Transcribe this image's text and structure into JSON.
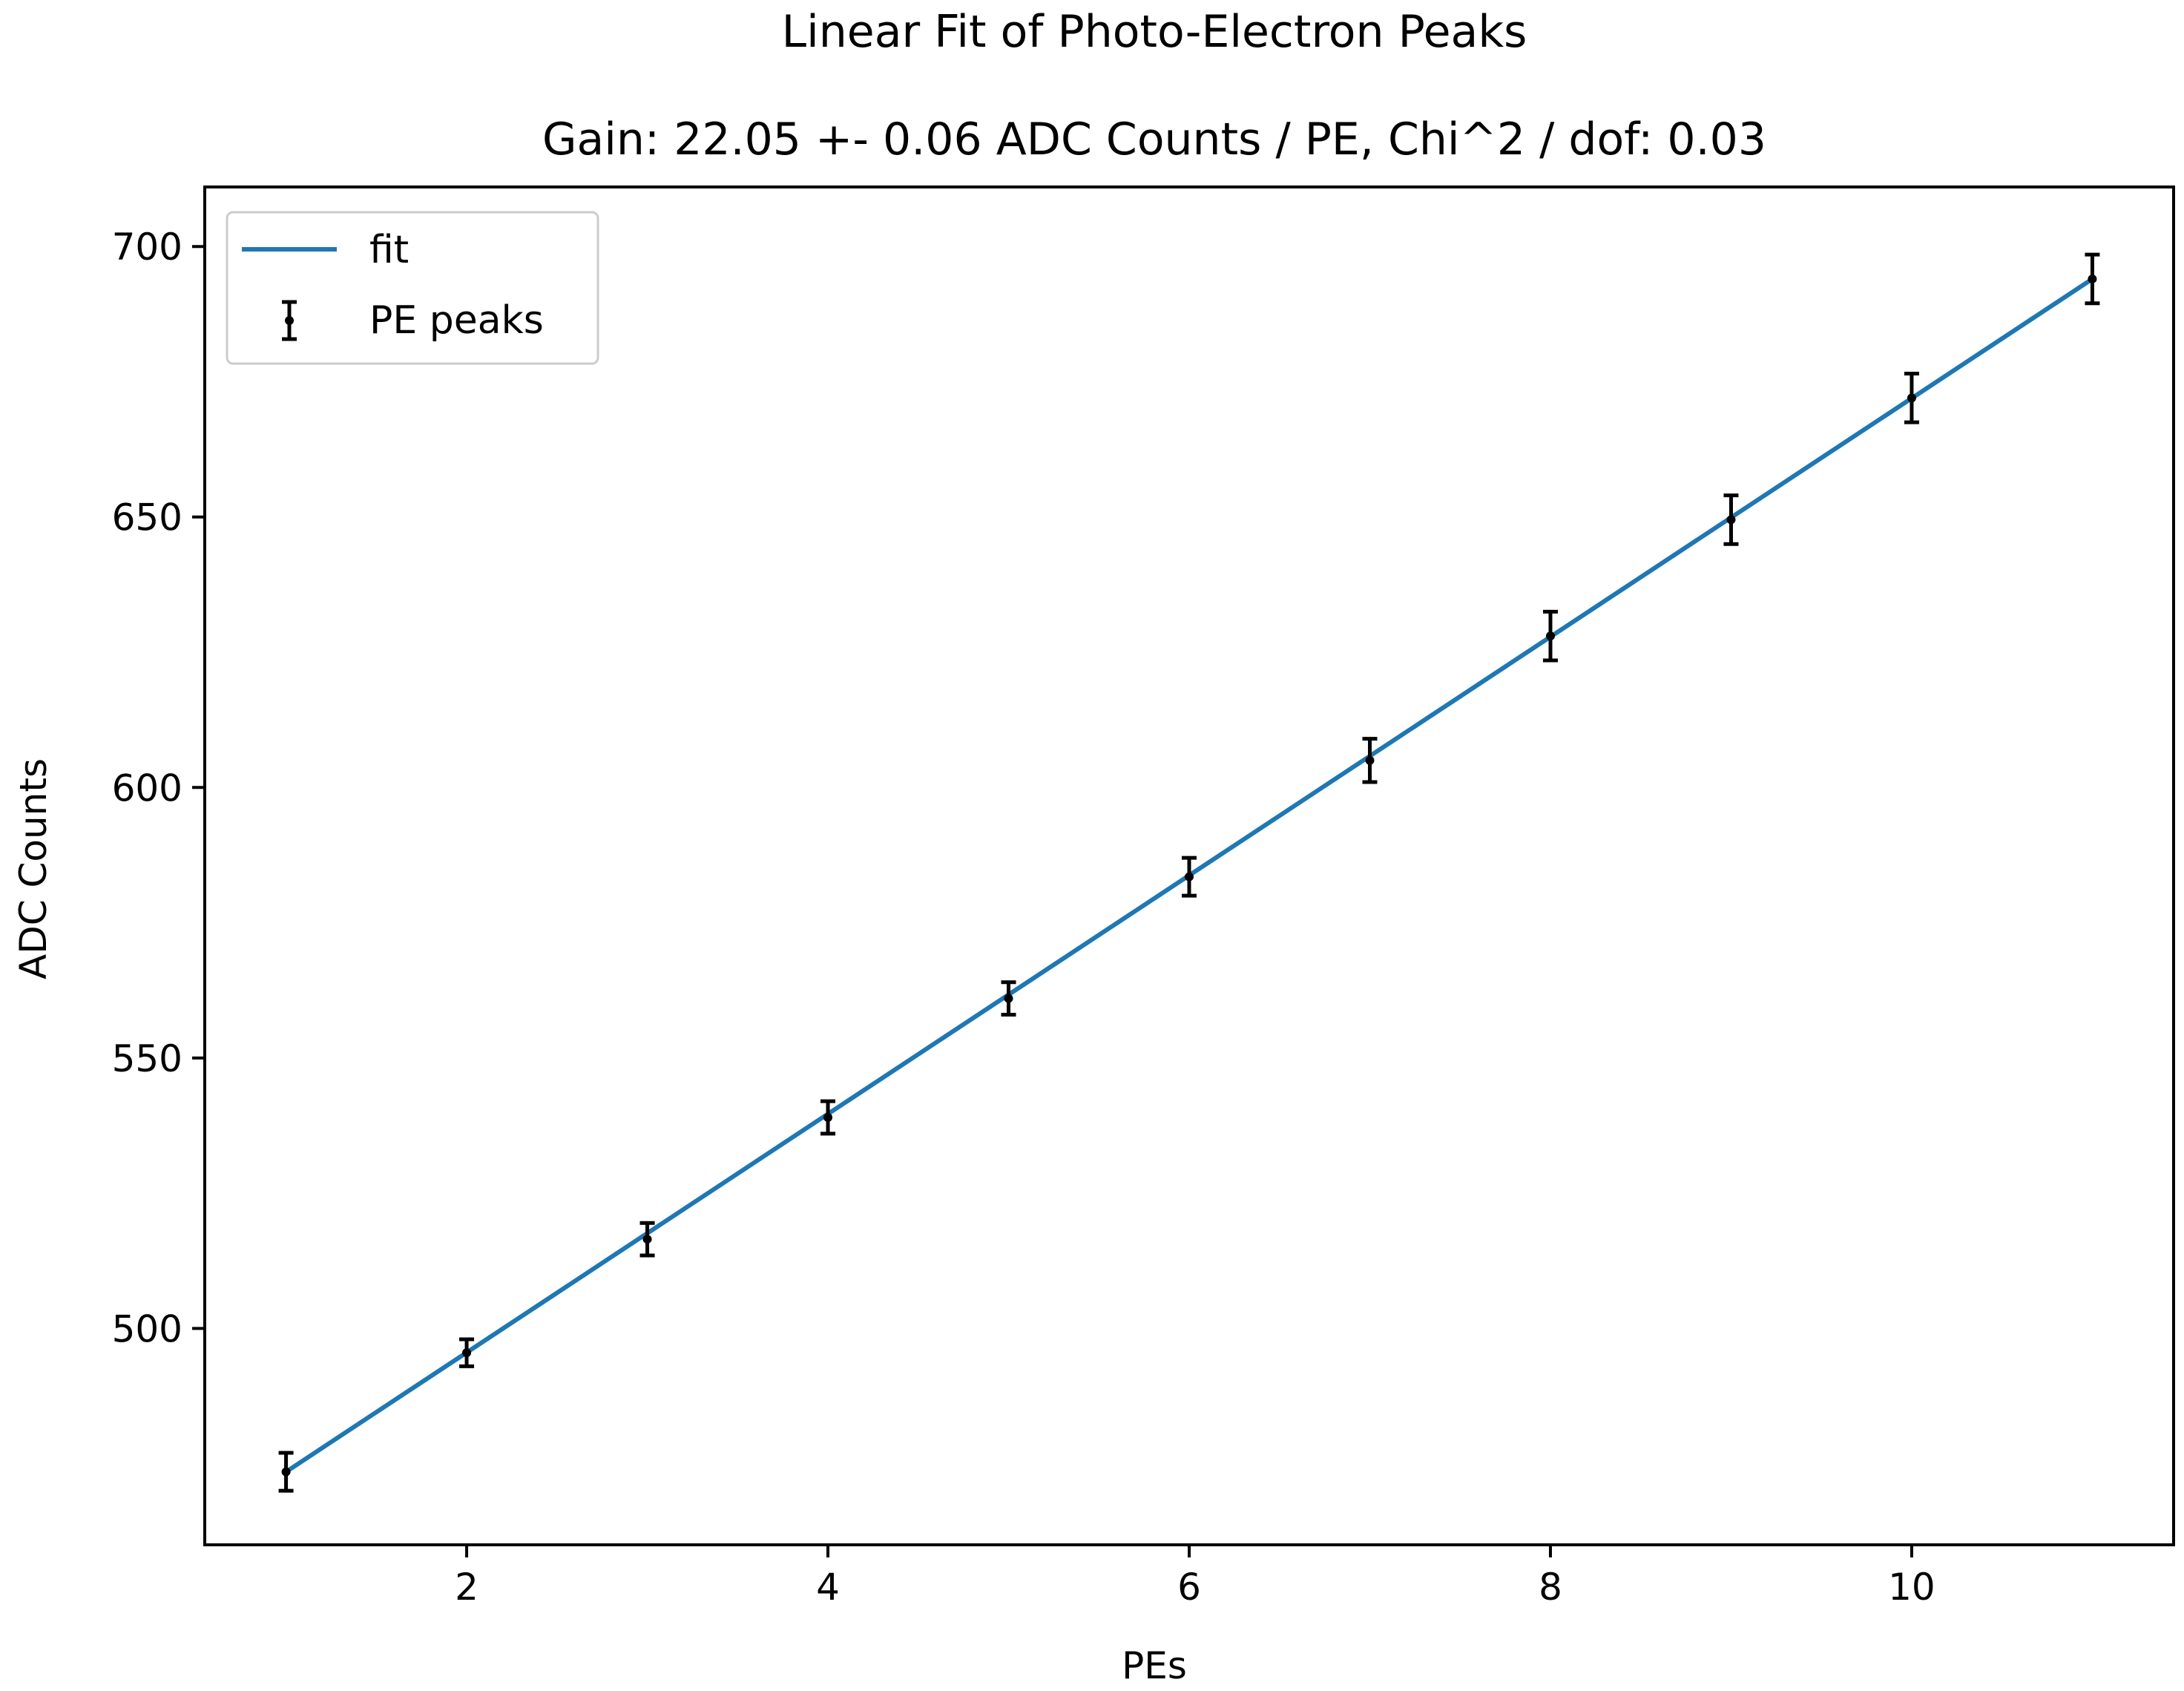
{
  "chart_data": {
    "type": "scatter",
    "title": "Linear Fit of Photo-Electron Peaks",
    "subtitle": "Gain: 22.05 +- 0.06 ADC Counts / PE, Chi^2 / dof: 0.03",
    "xlabel": "PEs",
    "ylabel": "ADC Counts",
    "xlim": [
      0.55,
      11.45
    ],
    "ylim": [
      460,
      711
    ],
    "xticks": [
      2,
      4,
      6,
      8,
      10
    ],
    "xtick_labels": [
      "2",
      "4",
      "6",
      "8",
      "10"
    ],
    "yticks": [
      500,
      550,
      600,
      650,
      700
    ],
    "ytick_labels": [
      "500",
      "550",
      "600",
      "650",
      "700"
    ],
    "grid": false,
    "legend_position": "top-left",
    "series": [
      {
        "name": "fit",
        "kind": "line",
        "color": "#1f77b4",
        "x": [
          1,
          11
        ],
        "y": [
          473.5,
          694.0
        ]
      },
      {
        "name": "PE peaks",
        "kind": "errorbar",
        "color": "#000000",
        "x": [
          1,
          2,
          3,
          4,
          5,
          6,
          7,
          8,
          9,
          10,
          11
        ],
        "y": [
          473.5,
          495.5,
          516.5,
          539.0,
          561.0,
          583.5,
          605.0,
          628.0,
          649.5,
          672.0,
          694.0
        ],
        "yerr": [
          3.5,
          2.5,
          3.0,
          3.0,
          3.0,
          3.5,
          4.0,
          4.5,
          4.5,
          4.5,
          4.5
        ]
      }
    ]
  }
}
